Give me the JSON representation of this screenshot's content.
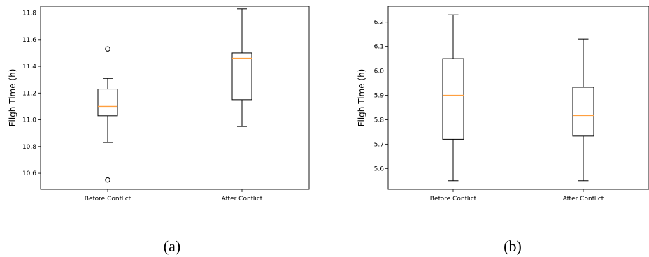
{
  "chart_data": [
    {
      "type": "boxplot",
      "caption": "(a)",
      "ylabel": "Fligh Time (h)",
      "categories": [
        "Before Conflict",
        "After Conflict"
      ],
      "ylim": [
        10.48,
        11.85
      ],
      "yticks": [
        10.6,
        10.8,
        11.0,
        11.2,
        11.4,
        11.6,
        11.8
      ],
      "grid": false,
      "boxes": [
        {
          "whisker_low": 10.83,
          "q1": 11.03,
          "median": 11.1,
          "q3": 11.23,
          "whisker_high": 11.31,
          "outliers": [
            11.53,
            10.55
          ]
        },
        {
          "whisker_low": 10.95,
          "q1": 11.15,
          "median": 11.46,
          "q3": 11.5,
          "whisker_high": 11.83,
          "outliers": []
        }
      ]
    },
    {
      "type": "boxplot",
      "caption": "(b)",
      "ylabel": "Fligh Time (h)",
      "categories": [
        "Before Conflict",
        "After Conflict"
      ],
      "ylim": [
        5.515,
        6.265
      ],
      "yticks": [
        5.6,
        5.7,
        5.8,
        5.9,
        6.0,
        6.1,
        6.2
      ],
      "grid": false,
      "boxes": [
        {
          "whisker_low": 5.55,
          "q1": 5.72,
          "median": 5.9,
          "q3": 6.05,
          "whisker_high": 6.23,
          "outliers": []
        },
        {
          "whisker_low": 5.55,
          "q1": 5.733,
          "median": 5.817,
          "q3": 5.933,
          "whisker_high": 6.13,
          "outliers": []
        }
      ]
    }
  ],
  "colors": {
    "median": "#ff9f3f",
    "box": "#000000"
  }
}
